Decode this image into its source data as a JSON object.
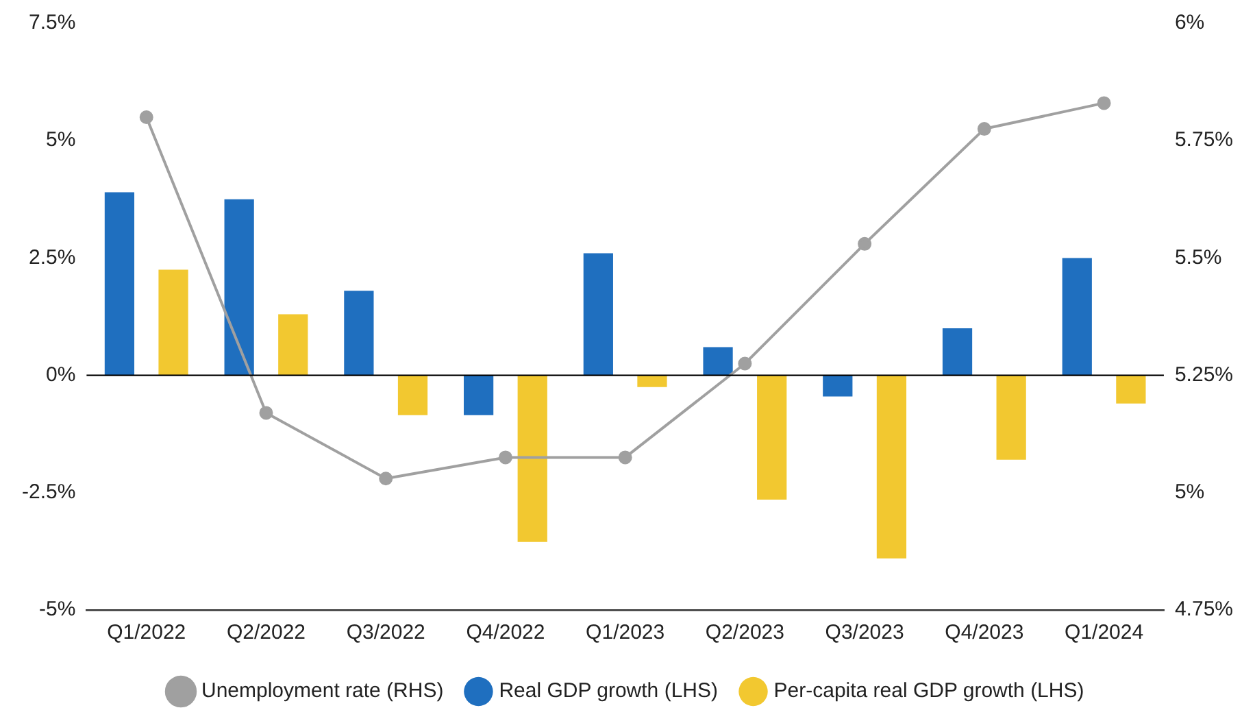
{
  "chart_data": {
    "type": "bar",
    "categories": [
      "Q1/2022",
      "Q2/2022",
      "Q3/2022",
      "Q4/2022",
      "Q1/2023",
      "Q2/2023",
      "Q3/2023",
      "Q4/2023",
      "Q1/2024"
    ],
    "series": [
      {
        "name": "Real GDP growth (LHS)",
        "color": "#1f6fbf",
        "values": [
          3.9,
          3.75,
          1.8,
          -0.85,
          2.6,
          0.6,
          -0.45,
          1.0,
          2.5
        ]
      },
      {
        "name": "Per-capita real GDP growth (LHS)",
        "color": "#f2c830",
        "values": [
          2.25,
          1.3,
          -0.85,
          -3.55,
          -0.25,
          -2.65,
          -3.9,
          -1.8,
          -0.6
        ]
      },
      {
        "name": "Unemployment rate (RHS)",
        "type": "line",
        "axis": "y2",
        "color": "#a0a0a0",
        "marker": "circle",
        "values": [
          5.8,
          5.17,
          5.03,
          5.075,
          5.075,
          5.275,
          5.53,
          5.775,
          5.83
        ]
      }
    ],
    "ylim": [
      -5,
      7.5
    ],
    "yticks": [
      {
        "value": -5,
        "label": "-5%"
      },
      {
        "value": -2.5,
        "label": "-2.5%"
      },
      {
        "value": 0,
        "label": "0%"
      },
      {
        "value": 2.5,
        "label": "2.5%"
      },
      {
        "value": 5,
        "label": "5%"
      },
      {
        "value": 7.5,
        "label": "7.5%"
      }
    ],
    "y2lim": [
      4.75,
      6
    ],
    "y2ticks": [
      {
        "value": 4.75,
        "label": "4.75%"
      },
      {
        "value": 5,
        "label": "5%"
      },
      {
        "value": 5.25,
        "label": "5.25%"
      },
      {
        "value": 5.5,
        "label": "5.5%"
      },
      {
        "value": 5.75,
        "label": "5.75%"
      },
      {
        "value": 6,
        "label": "6%"
      }
    ],
    "ref_lines": [
      {
        "axis": "y",
        "value": 0,
        "color": "#000000"
      }
    ],
    "grid": false,
    "legend": "bottom"
  }
}
